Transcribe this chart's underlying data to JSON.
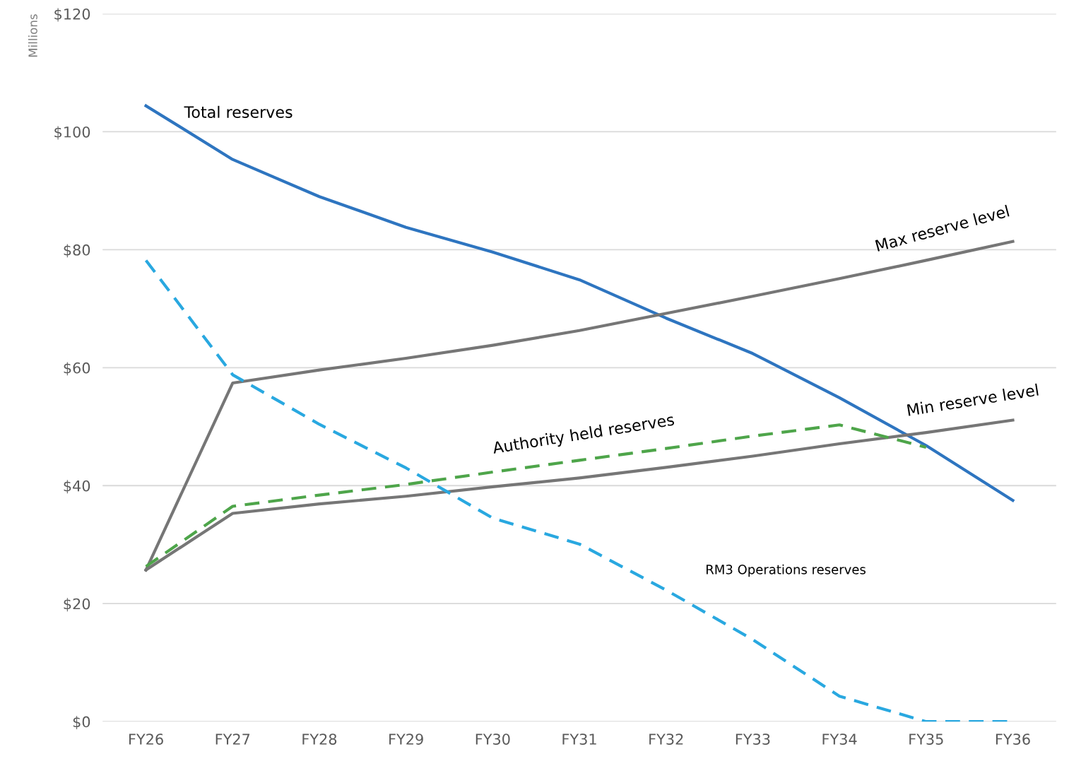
{
  "chart_data": {
    "type": "line",
    "ylabel": "Millions",
    "categories": [
      "FY26",
      "FY27",
      "FY28",
      "FY29",
      "FY30",
      "FY31",
      "FY32",
      "FY33",
      "FY34",
      "FY35",
      "FY36"
    ],
    "series": [
      {
        "name": "Total reserves",
        "color": "#2e75c0",
        "line_style": "solid",
        "values": [
          104.4,
          95.3,
          89.0,
          83.8,
          79.6,
          74.9,
          68.4,
          62.4,
          54.9,
          46.8,
          37.5
        ]
      },
      {
        "name": "Max reserve level",
        "color": "#767676",
        "line_style": "solid",
        "values": [
          25.7,
          57.4,
          59.6,
          61.6,
          63.8,
          66.3,
          69.2,
          72.1,
          75.1,
          78.2,
          81.4
        ]
      },
      {
        "name": "Min reserve level",
        "color": "#767676",
        "line_style": "solid",
        "values": [
          25.7,
          35.3,
          36.9,
          38.2,
          39.8,
          41.3,
          43.1,
          45.0,
          47.1,
          49.0,
          51.1
        ]
      },
      {
        "name": "Authority held reserves",
        "color": "#4ea54a",
        "line_style": "dashed",
        "values": [
          26.3,
          36.5,
          38.4,
          40.2,
          42.3,
          44.3,
          46.3,
          48.4,
          50.3,
          46.5,
          null
        ]
      },
      {
        "name": "RM3 Operations reserves",
        "color": "#29a8e0",
        "line_style": "dashed",
        "values": [
          78.2,
          58.8,
          50.4,
          43.0,
          34.5,
          30.1,
          22.3,
          13.9,
          4.3,
          0,
          0
        ]
      }
    ],
    "ylim": [
      0,
      120
    ],
    "yticks": [
      {
        "value": 0,
        "label": "$0"
      },
      {
        "value": 20,
        "label": "$20"
      },
      {
        "value": 40,
        "label": "$40"
      },
      {
        "value": 60,
        "label": "$60"
      },
      {
        "value": 80,
        "label": "$80"
      },
      {
        "value": 100,
        "label": "$100"
      },
      {
        "value": 120,
        "label": "$120"
      }
    ],
    "grid": "y",
    "marker": "none",
    "legend": false
  }
}
